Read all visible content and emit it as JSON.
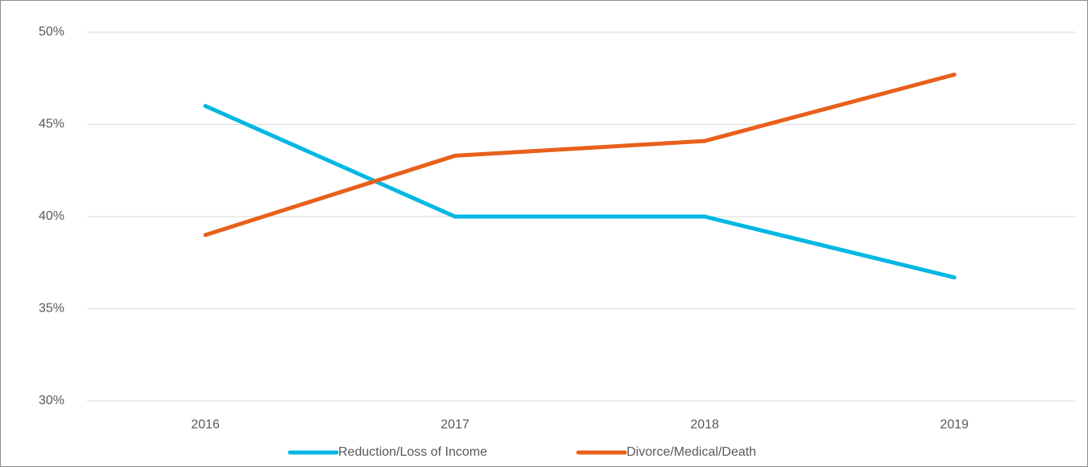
{
  "chart_data": {
    "type": "line",
    "categories": [
      "2016",
      "2017",
      "2018",
      "2019"
    ],
    "series": [
      {
        "name": "Reduction/Loss of Income",
        "color": "#00b7e3",
        "values": [
          46.0,
          40.0,
          40.0,
          36.7
        ]
      },
      {
        "name": "Divorce/Medical/Death",
        "color": "#e8601c",
        "values": [
          39.0,
          43.3,
          44.1,
          47.7
        ]
      }
    ],
    "ylim": [
      30,
      50
    ],
    "yticks": [
      {
        "value": 30,
        "label": "30%"
      },
      {
        "value": 35,
        "label": "35%"
      },
      {
        "value": 40,
        "label": "40%"
      },
      {
        "value": 45,
        "label": "45%"
      },
      {
        "value": 50,
        "label": "50%"
      }
    ],
    "grid": true,
    "legend": "bottom"
  }
}
